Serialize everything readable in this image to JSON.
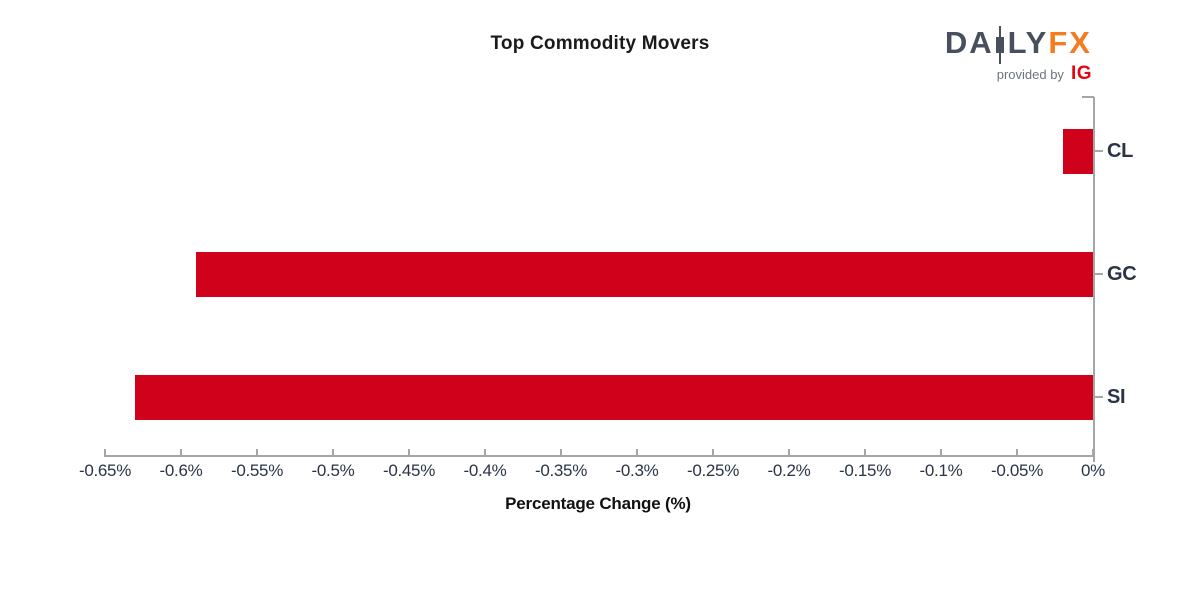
{
  "header": {
    "title": "Top Commodity Movers",
    "logo": {
      "part_da": "DA",
      "part_ly": "LY",
      "part_fx": "FX",
      "provided_by": "provided by",
      "ig": "IG",
      "daily_color": "#47505c",
      "fx_color": "#f47b20",
      "ig_color": "#e30613"
    }
  },
  "chart_data": {
    "type": "bar",
    "orientation": "horizontal",
    "title": "Top Commodity Movers",
    "xlabel": "Percentage Change (%)",
    "ylabel": "",
    "categories": [
      "CL",
      "GC",
      "SI"
    ],
    "values": [
      -0.02,
      -0.59,
      -0.63
    ],
    "unit": "%",
    "xlim": [
      -0.65,
      0
    ],
    "grid": false,
    "legend": false,
    "bar_color": "#d0021b",
    "axis_color": "#a6a6a6",
    "tick_label_color": "#2a3446",
    "xticks": [
      {
        "v": -0.65,
        "label": "-0.65%"
      },
      {
        "v": -0.6,
        "label": "-0.6%"
      },
      {
        "v": -0.55,
        "label": "-0.55%"
      },
      {
        "v": -0.5,
        "label": "-0.5%"
      },
      {
        "v": -0.45,
        "label": "-0.45%"
      },
      {
        "v": -0.4,
        "label": "-0.4%"
      },
      {
        "v": -0.35,
        "label": "-0.35%"
      },
      {
        "v": -0.3,
        "label": "-0.3%"
      },
      {
        "v": -0.25,
        "label": "-0.25%"
      },
      {
        "v": -0.2,
        "label": "-0.2%"
      },
      {
        "v": -0.15,
        "label": "-0.15%"
      },
      {
        "v": -0.1,
        "label": "-0.1%"
      },
      {
        "v": -0.05,
        "label": "-0.05%"
      },
      {
        "v": 0.0,
        "label": "0%"
      }
    ]
  }
}
